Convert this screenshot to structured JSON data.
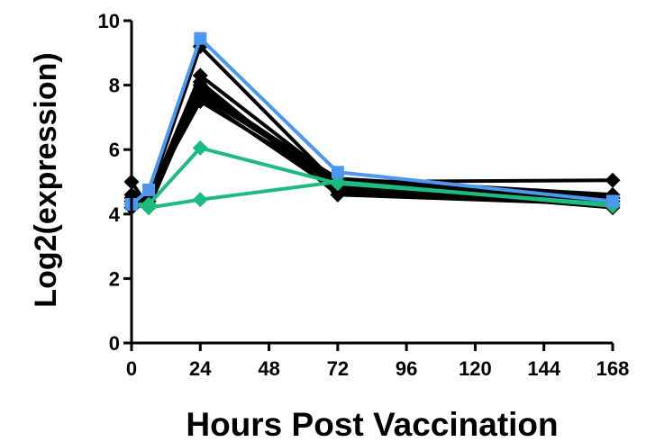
{
  "chart_data": {
    "type": "line",
    "title": "",
    "xlabel": "Hours Post Vaccination",
    "ylabel": "Log2(expression)",
    "x": [
      0,
      6,
      24,
      72,
      168
    ],
    "xlim": [
      0,
      168
    ],
    "ylim": [
      0,
      10
    ],
    "xticks": [
      0,
      24,
      48,
      72,
      96,
      120,
      144,
      168
    ],
    "yticks": [
      0,
      2,
      4,
      6,
      8,
      10
    ],
    "xtick_labels": [
      "0",
      "24",
      "48",
      "72",
      "96",
      "120",
      "144",
      "168"
    ],
    "ytick_labels": [
      "0",
      "2",
      "4",
      "6",
      "8",
      "10"
    ],
    "grid": false,
    "legend": "none",
    "series": [
      {
        "color": "#000000",
        "marker": "diamond",
        "values": [
          4.3,
          4.6,
          9.2,
          4.9,
          4.5
        ]
      },
      {
        "color": "#000000",
        "marker": "diamond",
        "values": [
          4.4,
          4.5,
          8.3,
          5.0,
          4.4
        ]
      },
      {
        "color": "#000000",
        "marker": "diamond",
        "values": [
          4.2,
          4.4,
          8.0,
          4.8,
          4.3
        ]
      },
      {
        "color": "#000000",
        "marker": "diamond",
        "values": [
          4.5,
          4.3,
          7.8,
          5.1,
          4.6
        ]
      },
      {
        "color": "#000000",
        "marker": "diamond",
        "values": [
          4.3,
          4.5,
          7.6,
          4.7,
          4.4
        ]
      },
      {
        "color": "#000000",
        "marker": "diamond",
        "values": [
          5.0,
          4.2,
          7.9,
          5.0,
          5.05
        ]
      },
      {
        "color": "#000000",
        "marker": "diamond",
        "values": [
          4.4,
          4.6,
          7.5,
          4.9,
          4.2
        ]
      },
      {
        "color": "#000000",
        "marker": "diamond",
        "values": [
          4.2,
          4.3,
          8.1,
          4.6,
          4.3
        ]
      },
      {
        "color": "#000000",
        "marker": "diamond",
        "values": [
          4.6,
          4.4,
          7.7,
          5.0,
          4.5
        ]
      },
      {
        "color": "#1dbb7f",
        "marker": "diamond",
        "values": [
          4.3,
          4.2,
          4.45,
          5.0,
          4.25
        ]
      },
      {
        "color": "#1dbb7f",
        "marker": "diamond",
        "values": [
          4.3,
          4.3,
          6.05,
          4.95,
          4.3
        ]
      },
      {
        "color": "#4d98ee",
        "marker": "square",
        "values": [
          4.3,
          4.75,
          9.45,
          5.3,
          4.4
        ]
      }
    ]
  }
}
